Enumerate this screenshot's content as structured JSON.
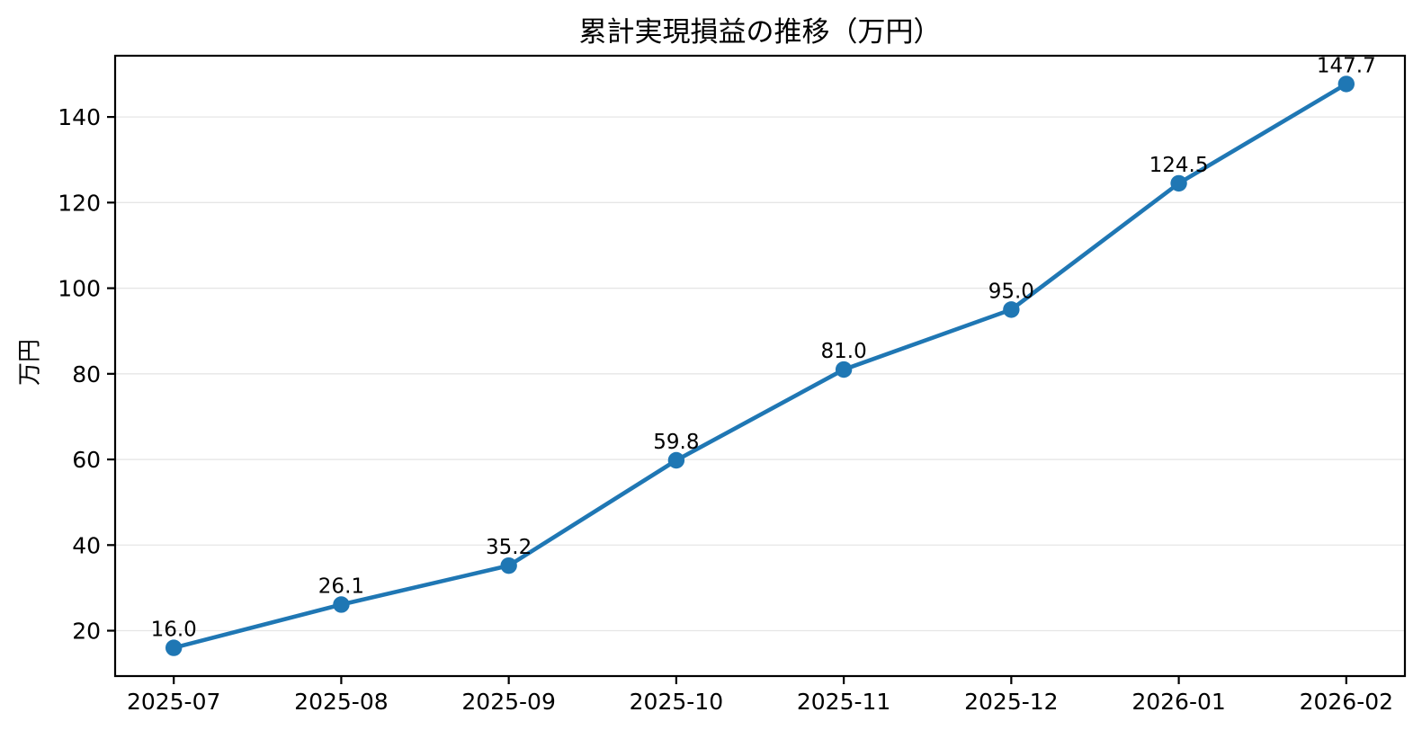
{
  "chart": {
    "title": "累計実現損益の推移（万円）",
    "ylabel": "万円"
  },
  "chart_data": {
    "type": "line",
    "title": "累計実現損益の推移（万円）",
    "xlabel": "",
    "ylabel": "万円",
    "x": [
      "2025-07",
      "2025-08",
      "2025-09",
      "2025-10",
      "2025-11",
      "2025-12",
      "2026-01",
      "2026-02"
    ],
    "values": [
      16.0,
      26.1,
      35.2,
      59.8,
      81.0,
      95.0,
      124.5,
      147.7
    ],
    "point_labels": [
      "16.0",
      "26.1",
      "35.2",
      "59.8",
      "81.0",
      "95.0",
      "124.5",
      "147.7"
    ],
    "yticks": [
      20,
      40,
      60,
      80,
      100,
      120,
      140
    ],
    "ylim": [
      9.4,
      154.3
    ],
    "xpad_units": 0.35,
    "grid": "horizontal-only",
    "legend": "none",
    "marker": "circle",
    "line_color": "#1f77b4",
    "marker_color": "#1f77b4",
    "grid_color": "#e6e6e6",
    "axis_color": "#000000",
    "text_color": "#000000",
    "background": "#ffffff"
  }
}
